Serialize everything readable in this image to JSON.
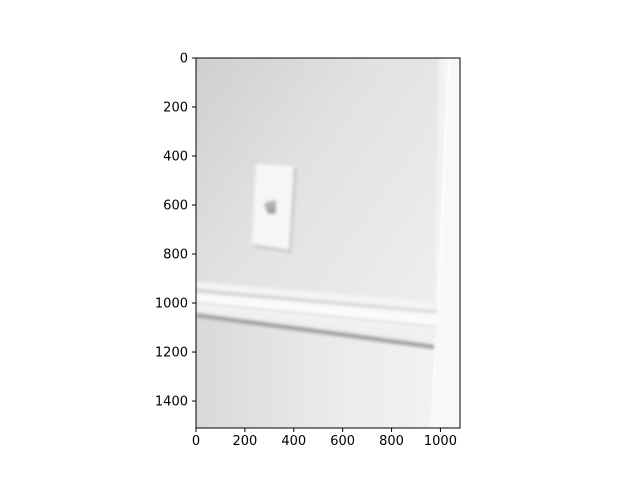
{
  "chart_data": {
    "type": "image",
    "title": "",
    "xlabel": "",
    "ylabel": "",
    "xlim": [
      0,
      1080
    ],
    "ylim": [
      1510,
      0
    ],
    "x_ticks": [
      0,
      200,
      400,
      600,
      800,
      1000
    ],
    "y_ticks": [
      0,
      200,
      400,
      600,
      800,
      1000,
      1200,
      1400
    ],
    "x_tick_labels": [
      "0",
      "200",
      "400",
      "600",
      "800",
      "1000"
    ],
    "y_tick_labels": [
      "0",
      "200",
      "400",
      "600",
      "800",
      "1000",
      "1200",
      "1400"
    ],
    "grid": false,
    "legend": "none",
    "image_content": "grayscale photo of a white wall with a light switch plate and a horizontal chair rail molding"
  }
}
